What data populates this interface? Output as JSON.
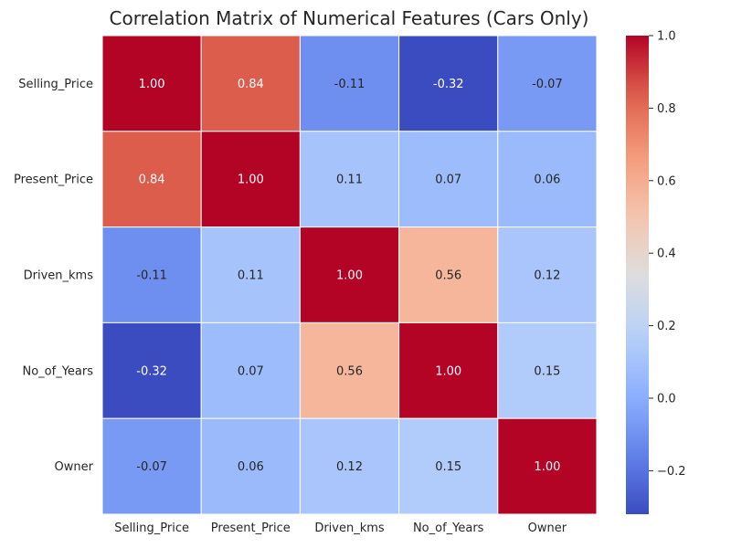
{
  "chart_data": {
    "type": "heatmap",
    "title": "Correlation Matrix of Numerical Features (Cars Only)",
    "rows": [
      "Selling_Price",
      "Present_Price",
      "Driven_kms",
      "No_of_Years",
      "Owner"
    ],
    "columns": [
      "Selling_Price",
      "Present_Price",
      "Driven_kms",
      "No_of_Years",
      "Owner"
    ],
    "values": [
      [
        1.0,
        0.84,
        -0.11,
        -0.32,
        -0.07
      ],
      [
        0.84,
        1.0,
        0.11,
        0.07,
        0.06
      ],
      [
        -0.11,
        0.11,
        1.0,
        0.56,
        0.12
      ],
      [
        -0.32,
        0.07,
        0.56,
        1.0,
        0.15
      ],
      [
        -0.07,
        0.06,
        0.12,
        0.15,
        1.0
      ]
    ],
    "annotation_format": "0.00",
    "colormap": "coolwarm",
    "color_range": [
      -0.32,
      1.0
    ],
    "colorbar_ticks": [
      -0.2,
      0.0,
      0.2,
      0.4,
      0.6,
      0.8,
      1.0
    ],
    "colorbar_tick_labels": [
      "−0.2",
      "0.0",
      "0.2",
      "0.4",
      "0.6",
      "0.8",
      "1.0"
    ],
    "cell_border_color": "#ffffff"
  }
}
